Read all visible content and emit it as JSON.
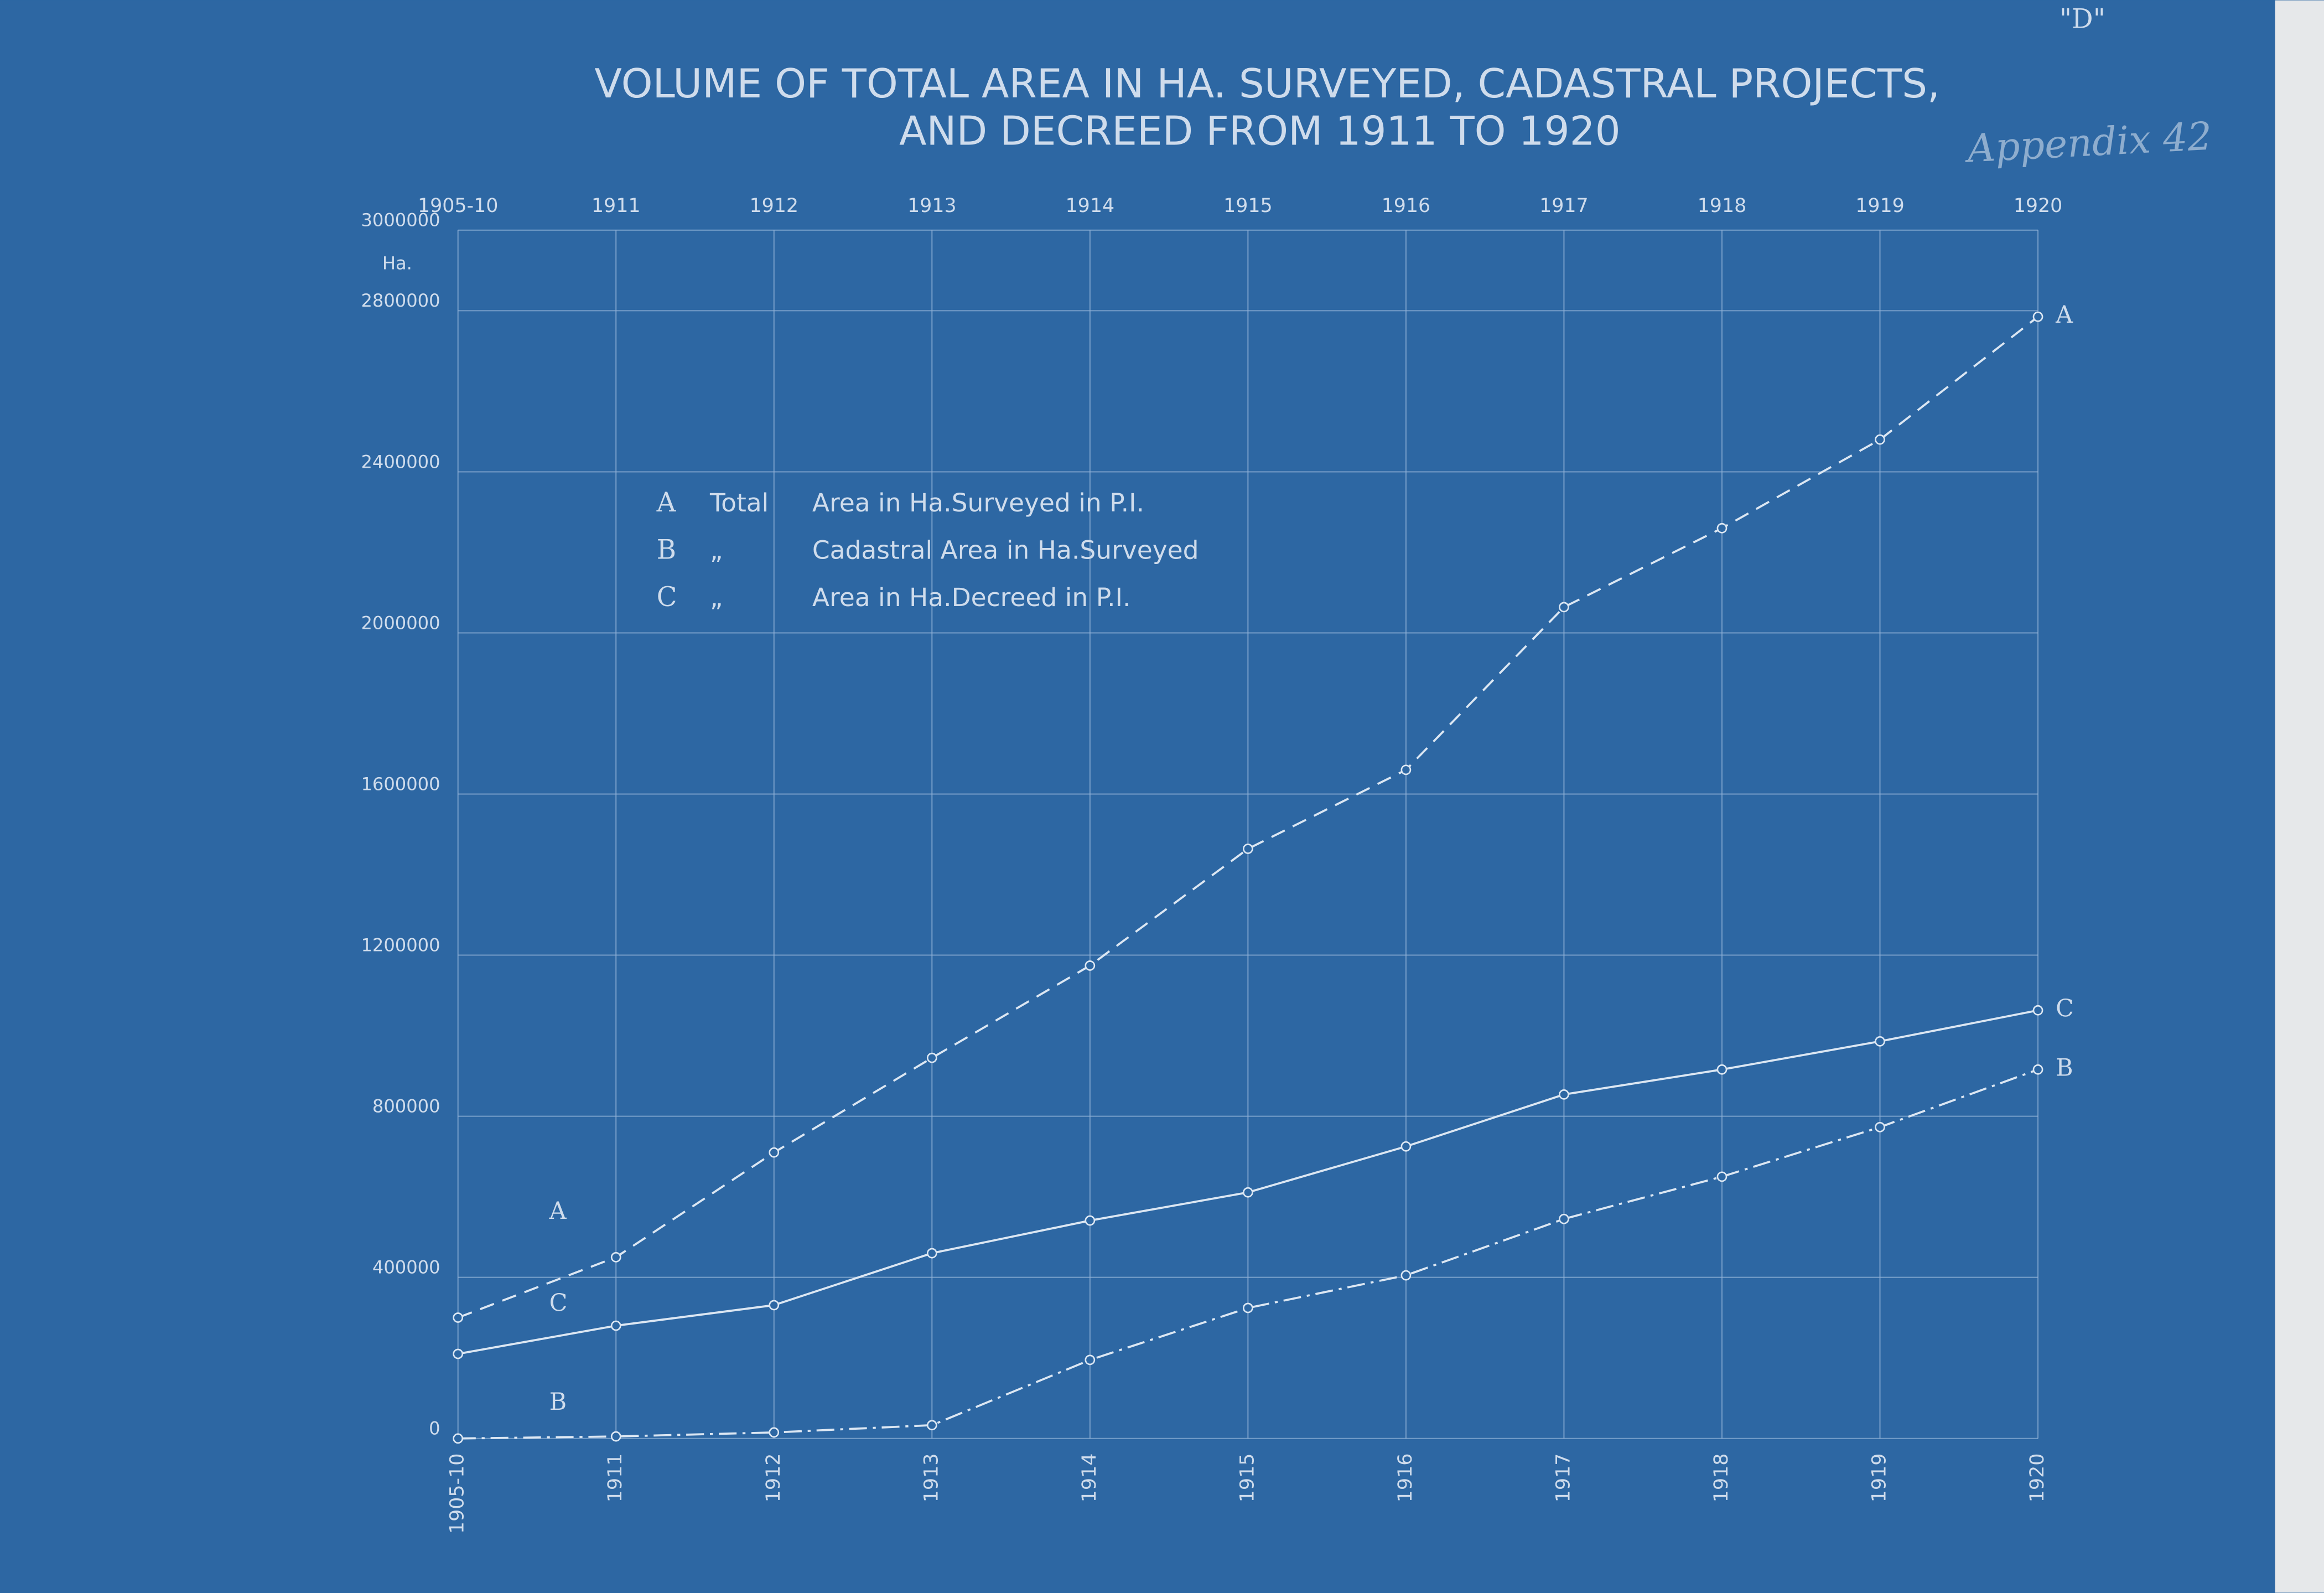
{
  "chart_data": {
    "type": "line",
    "title": "VOLUME OF TOTAL AREA IN HA. SURVEYED, CADASTRAL PROJECTS,",
    "subtitle": "AND DECREED FROM 1911 TO 1920",
    "corner_mark": "\"D\"",
    "note": "Appendix 42",
    "y_unit": "Ha.",
    "categories": [
      "1905-10",
      "1911",
      "1912",
      "1913",
      "1914",
      "1915",
      "1916",
      "1917",
      "1918",
      "1919",
      "1920"
    ],
    "ylim": [
      0,
      3000000
    ],
    "yticks": [
      0,
      400000,
      800000,
      1200000,
      1600000,
      2000000,
      2400000,
      2800000,
      3000000
    ],
    "grid": true,
    "series": [
      {
        "name": "A",
        "ditto": "Total",
        "legend": "Area in Ha.Surveyed in P.I.",
        "color": "#dce7f3",
        "dash": "10 6",
        "values": [
          300000,
          450000,
          710000,
          945000,
          1174000,
          1464000,
          1660000,
          2064000,
          2260000,
          2480000,
          2785000
        ]
      },
      {
        "name": "B",
        "ditto": "„",
        "legend": "Cadastral Area in Ha.Surveyed",
        "color": "#dce7f3",
        "dash": "12 4 2 4",
        "values": [
          0,
          5000,
          15000,
          33000,
          195000,
          324000,
          405000,
          545000,
          650000,
          773000,
          916000
        ]
      },
      {
        "name": "C",
        "ditto": "„",
        "legend": "Area in Ha.Decreed in P.I.",
        "color": "#dce7f3",
        "dash": "none",
        "values": [
          210000,
          280000,
          331000,
          460000,
          541000,
          611000,
          725000,
          854000,
          916000,
          986000,
          1063000
        ]
      }
    ]
  }
}
